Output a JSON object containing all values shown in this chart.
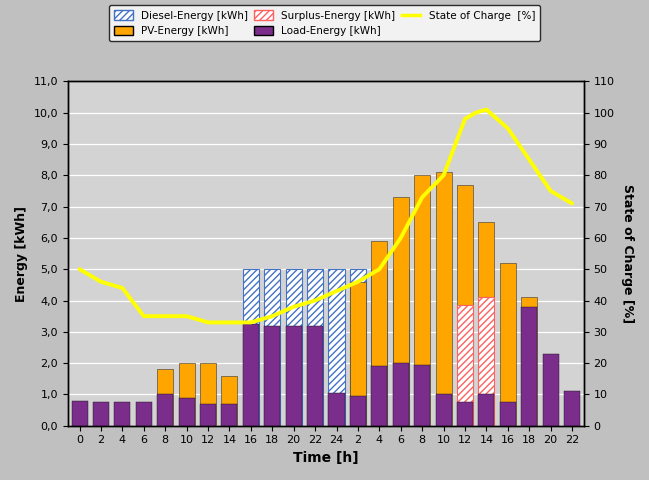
{
  "time_labels": [
    "0",
    "2",
    "4",
    "6",
    "8",
    "10",
    "12",
    "14",
    "16",
    "18",
    "20",
    "22",
    "24",
    "2",
    "4",
    "6",
    "8",
    "10",
    "12",
    "14",
    "16",
    "18",
    "20",
    "22"
  ],
  "x_positions": [
    0,
    1,
    2,
    3,
    4,
    5,
    6,
    7,
    8,
    9,
    10,
    11,
    12,
    13,
    14,
    15,
    16,
    17,
    18,
    19,
    20,
    21,
    22,
    23
  ],
  "diesel_energy": [
    0,
    0,
    0,
    0,
    0,
    0,
    0,
    0,
    5.0,
    5.0,
    5.0,
    5.0,
    5.0,
    5.0,
    5.0,
    5.0,
    0,
    0,
    0,
    0,
    0,
    0,
    0,
    0
  ],
  "pv_energy": [
    0,
    0,
    0,
    0,
    1.8,
    2.0,
    2.0,
    1.6,
    0,
    0,
    0,
    0,
    0,
    4.6,
    5.9,
    7.3,
    8.0,
    8.1,
    7.7,
    6.5,
    5.2,
    4.1,
    0,
    0
  ],
  "surplus_energy": [
    0,
    0,
    0,
    0,
    0,
    0,
    0,
    0,
    0,
    0,
    0,
    0,
    0,
    0,
    0,
    0,
    0,
    0,
    3.85,
    4.1,
    0,
    0,
    0,
    0
  ],
  "load_energy": [
    0.8,
    0.75,
    0.75,
    0.75,
    1.0,
    0.9,
    0.7,
    0.7,
    3.25,
    3.2,
    3.2,
    3.2,
    1.05,
    0.95,
    1.9,
    2.0,
    1.95,
    1.0,
    0.75,
    1.0,
    0.75,
    3.8,
    2.3,
    1.1
  ],
  "soc_x": [
    0,
    1,
    2,
    3,
    4,
    5,
    6,
    7,
    8,
    9,
    10,
    11,
    12,
    13,
    14,
    15,
    16,
    17,
    18,
    18.5,
    19,
    20,
    21,
    22,
    23
  ],
  "soc": [
    50,
    46,
    44,
    35,
    35,
    35,
    33,
    33,
    33,
    35,
    38,
    40,
    43,
    46,
    50,
    60,
    73,
    80,
    98,
    100,
    101,
    95,
    85,
    75,
    71
  ],
  "diesel_color": "#4472C4",
  "pv_color": "#FFA500",
  "surplus_color": "#FF6060",
  "load_color": "#7B2D8B",
  "soc_color": "#FFFF00",
  "soc_outline": "#CCCC00",
  "plot_bg_color": "#D3D3D3",
  "fig_bg_color": "#C0C0C0",
  "grid_color": "#FFFFFF",
  "xlabel": "Time [h]",
  "ylabel_left": "Energy [kWh]",
  "ylabel_right": "State of Charge [%]",
  "ylim_left": [
    0,
    11
  ],
  "ylim_right": [
    0,
    110
  ],
  "yticks_left": [
    0.0,
    1.0,
    2.0,
    3.0,
    4.0,
    5.0,
    6.0,
    7.0,
    8.0,
    9.0,
    10.0,
    11.0
  ],
  "ytick_labels_left": [
    "0,0",
    "1,0",
    "2,0",
    "3,0",
    "4,0",
    "5,0",
    "6,0",
    "7,0",
    "8,0",
    "9,0",
    "10,0",
    "11,0"
  ],
  "yticks_right": [
    0,
    10,
    20,
    30,
    40,
    50,
    60,
    70,
    80,
    90,
    100,
    110
  ],
  "ytick_labels_right": [
    "0",
    "10",
    "20",
    "30",
    "40",
    "50",
    "60",
    "70",
    "80",
    "90",
    "100",
    "110"
  ],
  "legend_labels": [
    "Diesel-Energy [kWh]",
    "PV-Energy [kWh]",
    "Surplus-Energy [kWh]",
    "Load-Energy [kWh]",
    "State of Charge  [%]"
  ],
  "bar_width": 0.75
}
